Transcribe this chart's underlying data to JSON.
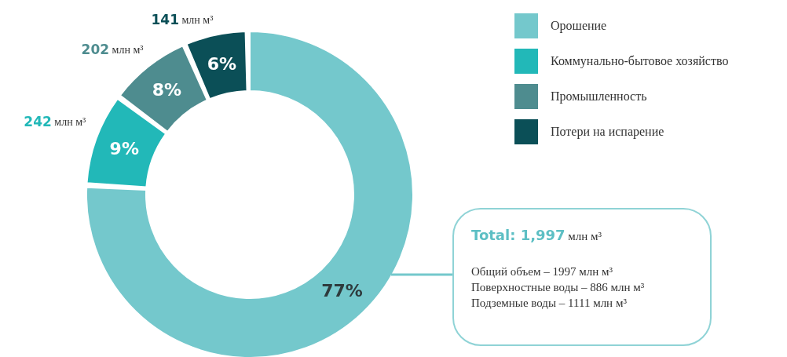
{
  "chart_data": {
    "type": "donut",
    "categories": [
      "Орошение",
      "Коммунально-бытовое хозяйство",
      "Промышленность",
      "Потери на испарение"
    ],
    "values": [
      77,
      9,
      8,
      6
    ],
    "colors": [
      "#74c8cc",
      "#22b8b8",
      "#4e8c8f",
      "#0b4f57"
    ],
    "value_labels": [
      "77%",
      "9%",
      "8%",
      "6%"
    ],
    "legend": "top right",
    "annotations": [
      {
        "text": "242 млн м³",
        "x": "Коммунально-бытовое хозяйство"
      },
      {
        "text": "202 млн м³",
        "x": "Промышленность"
      },
      {
        "text": "141 млн м³",
        "x": "Потери на испарение"
      },
      "Total: 1,997 млн м³",
      "Общий объем – 1997 млн м³",
      "Поверхностные воды – 886 млн м³",
      "Подземные воды – 1111 млн м³"
    ]
  }
}
